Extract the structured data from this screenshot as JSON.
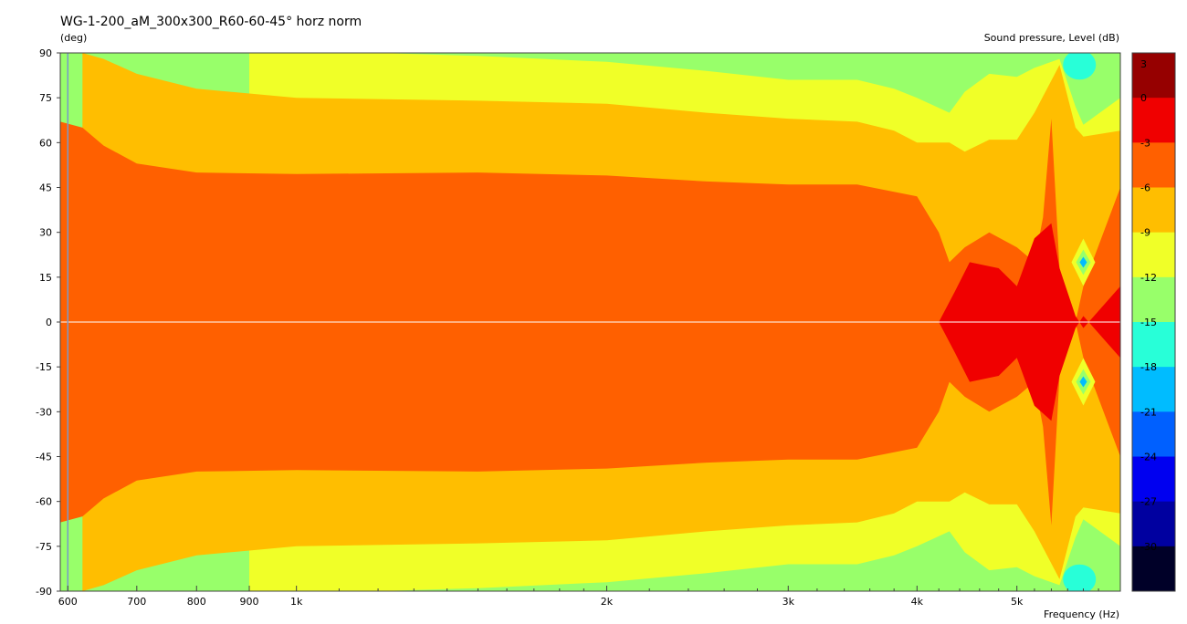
{
  "chart_data": {
    "type": "heatmap",
    "title": "WG-1-200_aM_300x300_R60-60-45° horz norm",
    "ylabel": "(deg)",
    "xlabel": "Frequency  (Hz)",
    "colorbar_label": "Sound pressure, Level  (dB)",
    "x_scale": "log",
    "xlim": [
      590,
      6300
    ],
    "ylim": [
      -90,
      90
    ],
    "x_ticks": [
      {
        "value": 600,
        "label": "600"
      },
      {
        "value": 700,
        "label": "700"
      },
      {
        "value": 800,
        "label": "800"
      },
      {
        "value": 900,
        "label": "900"
      },
      {
        "value": 1000,
        "label": "1k"
      },
      {
        "value": 2000,
        "label": "2k"
      },
      {
        "value": 3000,
        "label": "3k"
      },
      {
        "value": 4000,
        "label": "4k"
      },
      {
        "value": 5000,
        "label": "5k"
      }
    ],
    "x_minor_ticks": [
      1100,
      1200,
      1300,
      1400,
      1500,
      1600,
      1700,
      1800,
      1900,
      2200,
      2400,
      2600,
      2800,
      3200,
      3400,
      3600,
      3800,
      4200,
      4400,
      4600,
      4800,
      5200,
      5400,
      5600,
      5800,
      6000
    ],
    "y_ticks": [
      {
        "value": 90,
        "label": "90"
      },
      {
        "value": 75,
        "label": "75"
      },
      {
        "value": 60,
        "label": "60"
      },
      {
        "value": 45,
        "label": "45"
      },
      {
        "value": 30,
        "label": "30"
      },
      {
        "value": 15,
        "label": "15"
      },
      {
        "value": 0,
        "label": "0"
      },
      {
        "value": -15,
        "label": "-15"
      },
      {
        "value": -30,
        "label": "-30"
      },
      {
        "value": -45,
        "label": "-45"
      },
      {
        "value": -60,
        "label": "-60"
      },
      {
        "value": -75,
        "label": "-75"
      },
      {
        "value": -90,
        "label": "-90"
      }
    ],
    "levels": [
      3,
      0,
      -3,
      -6,
      -9,
      -12,
      -15,
      -18,
      -21,
      -24,
      -27,
      -30
    ],
    "level_labels": [
      "3",
      "0",
      "-3",
      "-6",
      "-9",
      "-12",
      "-15",
      "-18",
      "-21",
      "-24",
      "-27",
      "-30"
    ],
    "level_colors": [
      "#960000",
      "#f00000",
      "#ff6000",
      "#ffbe00",
      "#f0ff28",
      "#98ff6a",
      "#28ffd8",
      "#00bcff",
      "#0060ff",
      "#0000f0",
      "#0000a0",
      "#000028"
    ],
    "contours": [
      {
        "level": -3,
        "points": [
          [
            590,
            67
          ],
          [
            620,
            65
          ],
          [
            650,
            59
          ],
          [
            700,
            53
          ],
          [
            800,
            50
          ],
          [
            1000,
            49.5
          ],
          [
            1500,
            50
          ],
          [
            2000,
            49
          ],
          [
            2500,
            47
          ],
          [
            3000,
            46
          ],
          [
            3500,
            46
          ],
          [
            4000,
            42
          ],
          [
            4200,
            30
          ],
          [
            4300,
            20
          ],
          [
            4450,
            25
          ],
          [
            4700,
            30
          ],
          [
            5000,
            25
          ],
          [
            5200,
            20
          ],
          [
            5300,
            35
          ],
          [
            5400,
            68
          ],
          [
            5500,
            18
          ],
          [
            5700,
            0
          ],
          [
            5800,
            12
          ],
          [
            6300,
            45
          ]
        ]
      },
      {
        "level": -6,
        "points": [
          [
            620,
            90
          ],
          [
            650,
            88
          ],
          [
            700,
            83
          ],
          [
            800,
            78
          ],
          [
            1000,
            75
          ],
          [
            1500,
            74
          ],
          [
            2000,
            73
          ],
          [
            2500,
            70
          ],
          [
            3000,
            68
          ],
          [
            3500,
            67
          ],
          [
            3800,
            64
          ],
          [
            4000,
            60
          ],
          [
            4300,
            60
          ],
          [
            4450,
            57
          ],
          [
            4700,
            61
          ],
          [
            5000,
            61
          ],
          [
            5200,
            70
          ],
          [
            5500,
            86
          ],
          [
            5700,
            65
          ],
          [
            5800,
            62
          ],
          [
            6300,
            64
          ]
        ]
      },
      {
        "level": -9,
        "points": [
          [
            900,
            90
          ],
          [
            1200,
            90
          ],
          [
            1500,
            89
          ],
          [
            2000,
            87
          ],
          [
            2500,
            84
          ],
          [
            3000,
            81
          ],
          [
            3500,
            81
          ],
          [
            3800,
            78
          ],
          [
            4000,
            75
          ],
          [
            4300,
            70
          ],
          [
            4450,
            77
          ],
          [
            4700,
            83
          ],
          [
            5000,
            82
          ],
          [
            5200,
            85
          ],
          [
            5500,
            88
          ],
          [
            5700,
            72
          ],
          [
            5800,
            66
          ],
          [
            6300,
            75
          ]
        ]
      },
      {
        "level": 0,
        "points": [
          [
            4200,
            0
          ],
          [
            4350,
            10
          ],
          [
            4500,
            20
          ],
          [
            4800,
            18
          ],
          [
            5000,
            12
          ],
          [
            5200,
            28
          ],
          [
            5400,
            33
          ],
          [
            5500,
            18
          ],
          [
            5700,
            2
          ],
          [
            5800,
            -2
          ],
          [
            6300,
            12
          ]
        ]
      }
    ],
    "hotspots": [
      {
        "freq": 5800,
        "angle": 20,
        "level": -12
      },
      {
        "freq": 5800,
        "angle": -20,
        "level": -12
      }
    ],
    "grid": false,
    "legend": "colorbar-right"
  }
}
